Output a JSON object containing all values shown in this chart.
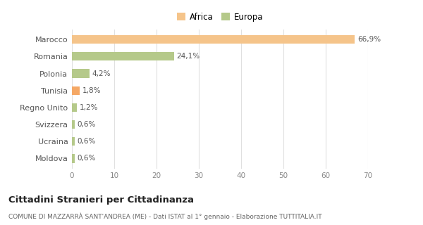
{
  "categories": [
    "Marocco",
    "Romania",
    "Polonia",
    "Tunisia",
    "Regno Unito",
    "Svizzera",
    "Ucraina",
    "Moldova"
  ],
  "values": [
    66.9,
    24.1,
    4.2,
    1.8,
    1.2,
    0.6,
    0.6,
    0.6
  ],
  "labels": [
    "66,9%",
    "24,1%",
    "4,2%",
    "1,8%",
    "1,2%",
    "0,6%",
    "0,6%",
    "0,6%"
  ],
  "colors": [
    "#f5c48a",
    "#b5c98a",
    "#b5c98a",
    "#f5a865",
    "#b5c98a",
    "#b5c98a",
    "#b5c98a",
    "#b5c98a"
  ],
  "legend_labels": [
    "Africa",
    "Europa"
  ],
  "legend_colors": [
    "#f5c48a",
    "#b5c98a"
  ],
  "title": "Cittadini Stranieri per Cittadinanza",
  "subtitle": "COMUNE DI MAZZARRÀ SANT'ANDREA (ME) - Dati ISTAT al 1° gennaio - Elaborazione TUTTITALIA.IT",
  "xlim": [
    0,
    70
  ],
  "xticks": [
    0,
    10,
    20,
    30,
    40,
    50,
    60,
    70
  ],
  "background_color": "#ffffff",
  "grid_color": "#e0e0e0",
  "bar_height": 0.5
}
